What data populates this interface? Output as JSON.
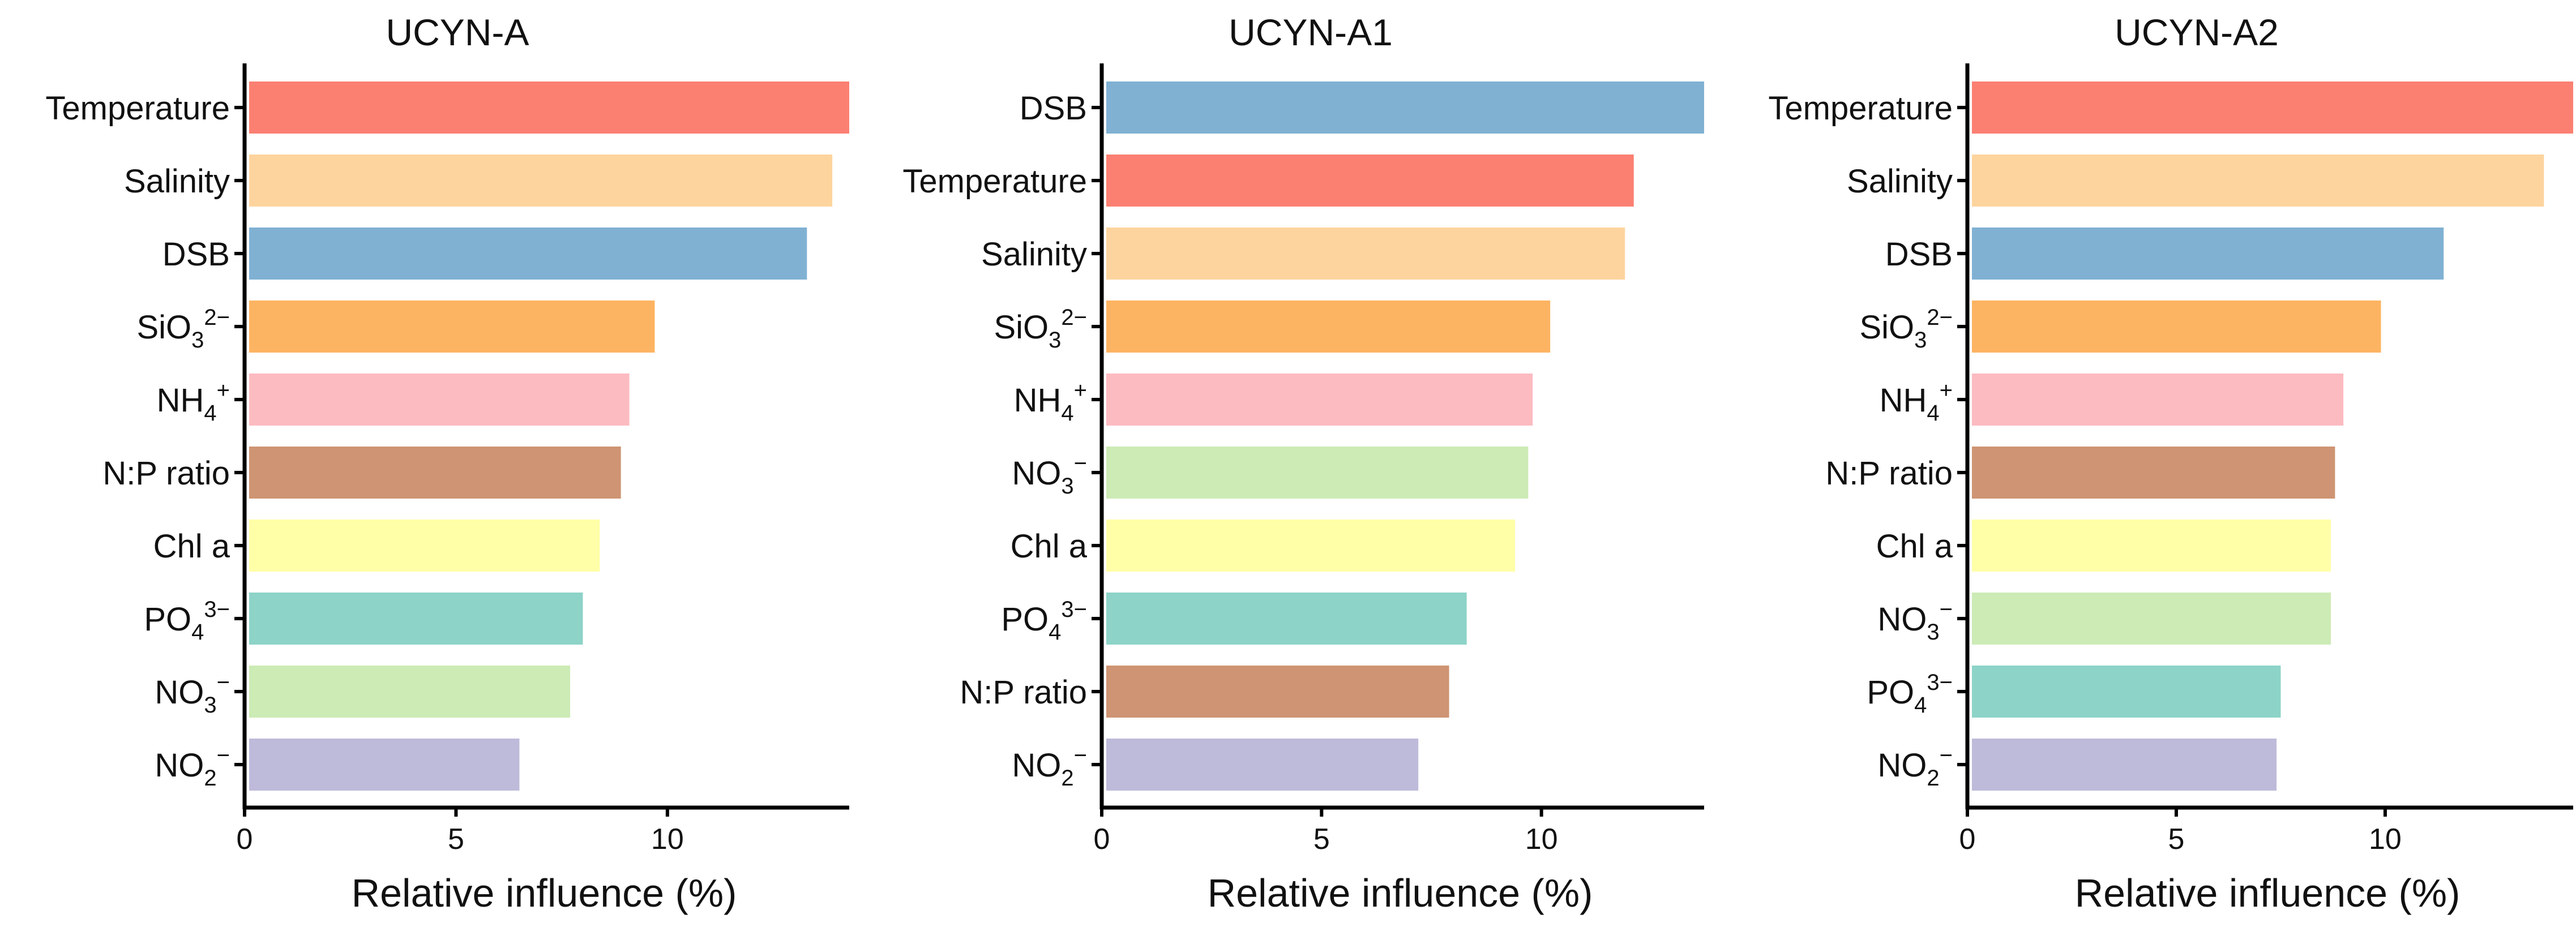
{
  "figure": {
    "colors": {
      "Temperature": "#FB8072",
      "Salinity": "#FDD49E",
      "DSB": "#80B1D3",
      "SiO3": "#FDB462",
      "NH4": "#FCBBC1",
      "NP": "#CE9473",
      "Chl": "#FFFFA8",
      "PO4": "#8DD3C7",
      "NO3": "#CCEBB5",
      "NO2": "#BEBADA",
      "axis": "#000000"
    }
  },
  "chart_data": [
    {
      "type": "bar",
      "orientation": "horizontal",
      "title": "UCYN-A",
      "xlabel": "Relative influence (%)",
      "ylabel": "",
      "xlim": [
        0,
        14.3
      ],
      "xticks": [
        "0",
        "5",
        "10"
      ],
      "categories": [
        {
          "key": "Temperature",
          "base": "Temperature",
          "sub": "",
          "sup": ""
        },
        {
          "key": "Salinity",
          "base": "Salinity",
          "sub": "",
          "sup": ""
        },
        {
          "key": "DSB",
          "base": "DSB",
          "sub": "",
          "sup": ""
        },
        {
          "key": "SiO3",
          "base": "SiO",
          "sub": "3",
          "sup": "2−"
        },
        {
          "key": "NH4",
          "base": "NH",
          "sub": "4",
          "sup": "+"
        },
        {
          "key": "NP",
          "base": "N:P ratio",
          "sub": "",
          "sup": ""
        },
        {
          "key": "Chl",
          "base": "Chl a",
          "sub": "",
          "sup": ""
        },
        {
          "key": "PO4",
          "base": "PO",
          "sub": "4",
          "sup": "3−"
        },
        {
          "key": "NO3",
          "base": "NO",
          "sub": "3",
          "sup": "−"
        },
        {
          "key": "NO2",
          "base": "NO",
          "sub": "2",
          "sup": "−"
        }
      ],
      "values": [
        14.3,
        13.9,
        13.3,
        9.7,
        9.1,
        8.9,
        8.4,
        8.0,
        7.7,
        6.5
      ]
    },
    {
      "type": "bar",
      "orientation": "horizontal",
      "title": "UCYN-A1",
      "xlabel": "Relative influence (%)",
      "ylabel": "",
      "xlim": [
        0,
        13.7
      ],
      "xticks": [
        "0",
        "5",
        "10"
      ],
      "categories": [
        {
          "key": "DSB",
          "base": "DSB",
          "sub": "",
          "sup": ""
        },
        {
          "key": "Temperature",
          "base": "Temperature",
          "sub": "",
          "sup": ""
        },
        {
          "key": "Salinity",
          "base": "Salinity",
          "sub": "",
          "sup": ""
        },
        {
          "key": "SiO3",
          "base": "SiO",
          "sub": "3",
          "sup": "2−"
        },
        {
          "key": "NH4",
          "base": "NH",
          "sub": "4",
          "sup": "+"
        },
        {
          "key": "NO3",
          "base": "NO",
          "sub": "3",
          "sup": "−"
        },
        {
          "key": "Chl",
          "base": "Chl a",
          "sub": "",
          "sup": ""
        },
        {
          "key": "PO4",
          "base": "PO",
          "sub": "4",
          "sup": "3−"
        },
        {
          "key": "NP",
          "base": "N:P ratio",
          "sub": "",
          "sup": ""
        },
        {
          "key": "NO2",
          "base": "NO",
          "sub": "2",
          "sup": "−"
        }
      ],
      "values": [
        13.7,
        12.1,
        11.9,
        10.2,
        9.8,
        9.7,
        9.4,
        8.3,
        7.9,
        7.2
      ]
    },
    {
      "type": "bar",
      "orientation": "horizontal",
      "title": "UCYN-A2",
      "xlabel": "Relative influence (%)",
      "ylabel": "",
      "xlim": [
        0,
        14.5
      ],
      "xticks": [
        "0",
        "5",
        "10"
      ],
      "categories": [
        {
          "key": "Temperature",
          "base": "Temperature",
          "sub": "",
          "sup": ""
        },
        {
          "key": "Salinity",
          "base": "Salinity",
          "sub": "",
          "sup": ""
        },
        {
          "key": "DSB",
          "base": "DSB",
          "sub": "",
          "sup": ""
        },
        {
          "key": "SiO3",
          "base": "SiO",
          "sub": "3",
          "sup": "2−"
        },
        {
          "key": "NH4",
          "base": "NH",
          "sub": "4",
          "sup": "+"
        },
        {
          "key": "NP",
          "base": "N:P ratio",
          "sub": "",
          "sup": ""
        },
        {
          "key": "Chl",
          "base": "Chl a",
          "sub": "",
          "sup": ""
        },
        {
          "key": "NO3",
          "base": "NO",
          "sub": "3",
          "sup": "−"
        },
        {
          "key": "PO4",
          "base": "PO",
          "sub": "4",
          "sup": "3−"
        },
        {
          "key": "NO2",
          "base": "NO",
          "sub": "2",
          "sup": "−"
        }
      ],
      "values": [
        14.5,
        13.8,
        11.4,
        9.9,
        9.0,
        8.8,
        8.7,
        8.7,
        7.5,
        7.4
      ]
    }
  ]
}
